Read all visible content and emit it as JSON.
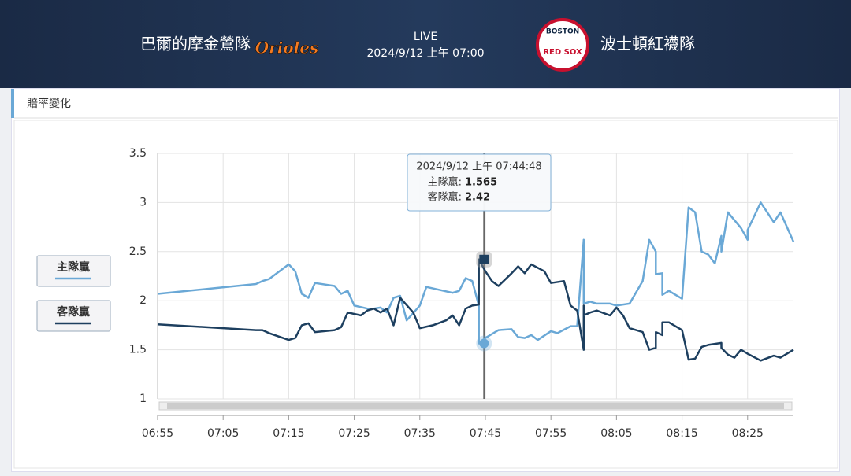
{
  "header": {
    "home": "巴爾的摩金鶯隊",
    "home_logo": "Orioles",
    "status": "LIVE",
    "time": "2024/9/12 上午 07:00",
    "away": "波士頓紅襪隊",
    "away_logo_top": "BOSTON",
    "away_logo_bottom": "RED SOX"
  },
  "panel": {
    "tab": "賠率變化"
  },
  "chart_data": {
    "type": "line",
    "xlim": [
      "06:55",
      "08:32"
    ],
    "xticks": [
      "06:55",
      "07:05",
      "07:15",
      "07:25",
      "07:35",
      "07:45",
      "07:55",
      "08:05",
      "08:15",
      "08:25"
    ],
    "ylim": [
      1,
      3.5
    ],
    "yticks": [
      1,
      1.5,
      2,
      2.5,
      3,
      3.5
    ],
    "grid": true,
    "legend": "left",
    "series": [
      {
        "name": "主隊贏",
        "color": "#6aa8d6",
        "x": [
          "06:55",
          "07:10",
          "07:11",
          "07:12",
          "07:15",
          "07:16",
          "07:17",
          "07:18",
          "07:19",
          "07:22",
          "07:23",
          "07:24",
          "07:25",
          "07:27",
          "07:28",
          "07:29",
          "07:30",
          "07:31",
          "07:32",
          "07:33",
          "07:35",
          "07:36",
          "07:40",
          "07:41",
          "07:42",
          "07:43",
          "07:44",
          "07:44",
          "07:45",
          "07:47",
          "07:49",
          "07:50",
          "07:51",
          "07:52",
          "07:53",
          "07:55",
          "07:56",
          "07:58",
          "07:59",
          "08:00",
          "08:00",
          "08:00",
          "08:00",
          "08:01",
          "08:02",
          "08:04",
          "08:05",
          "08:07",
          "08:09",
          "08:10",
          "08:11",
          "08:11",
          "08:12",
          "08:12",
          "08:13",
          "08:15",
          "08:16",
          "08:17",
          "08:18",
          "08:19",
          "08:20",
          "08:21",
          "08:21",
          "08:22",
          "08:24",
          "08:25",
          "08:25",
          "08:27",
          "08:29",
          "08:30",
          "08:32"
        ],
        "values": [
          2.07,
          2.17,
          2.2,
          2.22,
          2.37,
          2.3,
          2.07,
          2.03,
          2.18,
          2.15,
          2.07,
          2.1,
          1.95,
          1.92,
          1.92,
          1.93,
          1.88,
          2.03,
          2.05,
          1.8,
          1.95,
          2.14,
          2.08,
          2.1,
          2.23,
          2.2,
          1.95,
          1.565,
          1.62,
          1.7,
          1.71,
          1.63,
          1.62,
          1.65,
          1.6,
          1.69,
          1.67,
          1.74,
          1.74,
          2.62,
          2.4,
          2.62,
          1.97,
          1.99,
          1.97,
          1.97,
          1.95,
          1.97,
          2.2,
          2.62,
          2.5,
          2.27,
          2.28,
          2.06,
          2.1,
          2.02,
          2.95,
          2.9,
          2.5,
          2.47,
          2.38,
          2.66,
          2.5,
          2.9,
          2.74,
          2.62,
          2.72,
          3.0,
          2.8,
          2.9,
          2.6
        ]
      },
      {
        "name": "客隊贏",
        "color": "#1d3f5f",
        "x": [
          "06:55",
          "07:10",
          "07:11",
          "07:12",
          "07:15",
          "07:16",
          "07:17",
          "07:18",
          "07:19",
          "07:22",
          "07:23",
          "07:24",
          "07:26",
          "07:27",
          "07:28",
          "07:29",
          "07:30",
          "07:31",
          "07:32",
          "07:34",
          "07:35",
          "07:37",
          "07:39",
          "07:40",
          "07:41",
          "07:42",
          "07:43",
          "07:44",
          "07:44",
          "07:45",
          "07:46",
          "07:47",
          "07:49",
          "07:50",
          "07:51",
          "07:52",
          "07:54",
          "07:55",
          "07:57",
          "07:58",
          "07:59",
          "08:00",
          "08:00",
          "08:00",
          "08:00",
          "08:01",
          "08:02",
          "08:04",
          "08:05",
          "08:06",
          "08:07",
          "08:09",
          "08:10",
          "08:11",
          "08:11",
          "08:12",
          "08:12",
          "08:13",
          "08:15",
          "08:16",
          "08:17",
          "08:18",
          "08:19",
          "08:21",
          "08:21",
          "08:22",
          "08:23",
          "08:24",
          "08:25",
          "08:27",
          "08:29",
          "08:30",
          "08:32"
        ],
        "values": [
          1.76,
          1.7,
          1.7,
          1.67,
          1.6,
          1.62,
          1.75,
          1.77,
          1.68,
          1.7,
          1.73,
          1.88,
          1.85,
          1.9,
          1.92,
          1.88,
          1.92,
          1.75,
          2.03,
          1.88,
          1.72,
          1.75,
          1.8,
          1.85,
          1.75,
          1.92,
          1.95,
          1.96,
          2.42,
          2.3,
          2.2,
          2.15,
          2.28,
          2.35,
          2.28,
          2.37,
          2.3,
          2.18,
          2.2,
          1.95,
          1.9,
          1.5,
          1.95,
          1.5,
          1.85,
          1.88,
          1.9,
          1.85,
          1.93,
          1.85,
          1.72,
          1.68,
          1.5,
          1.52,
          1.68,
          1.65,
          1.78,
          1.78,
          1.7,
          1.4,
          1.41,
          1.53,
          1.55,
          1.57,
          1.52,
          1.45,
          1.42,
          1.5,
          1.46,
          1.39,
          1.44,
          1.42,
          1.5
        ]
      }
    ],
    "tooltip": {
      "title": "2024/9/12 上午 07:44:48",
      "items": [
        {
          "label": "主隊贏:",
          "value": 1.565
        },
        {
          "label": "客隊贏:",
          "value": 2.42
        }
      ]
    }
  }
}
